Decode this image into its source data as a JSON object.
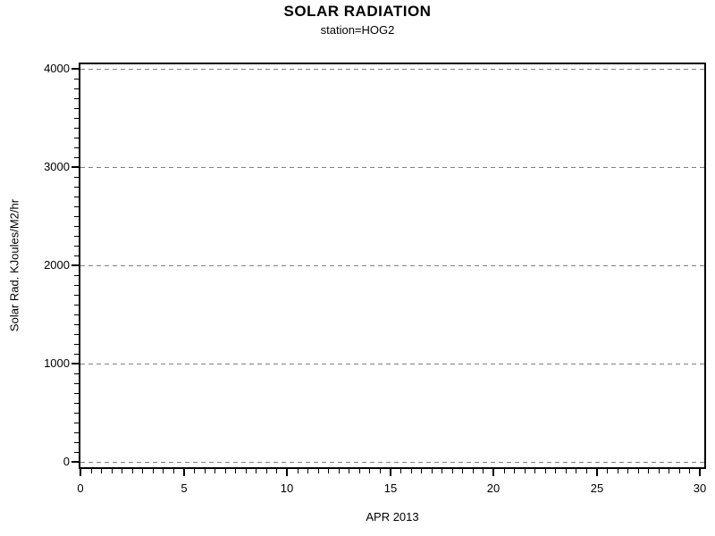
{
  "chart_data": {
    "type": "line",
    "title": "SOLAR RADIATION",
    "subtitle": "station=HOG2",
    "xlabel": "APR 2013",
    "ylabel": "Solar Rad. KJoules/M2/hr",
    "xlim": [
      0,
      30
    ],
    "ylim": [
      0,
      4000
    ],
    "xticks": [
      0,
      5,
      10,
      15,
      20,
      25,
      30
    ],
    "yticks": [
      0,
      1000,
      2000,
      3000,
      4000
    ],
    "x_minor_step": 0.5,
    "y_minor_step": 100,
    "grid": "horizontal",
    "gridline_style": "dashed",
    "gridline_color": "#808080",
    "axis_color": "#000000",
    "background_color": "#ffffff",
    "legend": "none",
    "series": []
  }
}
